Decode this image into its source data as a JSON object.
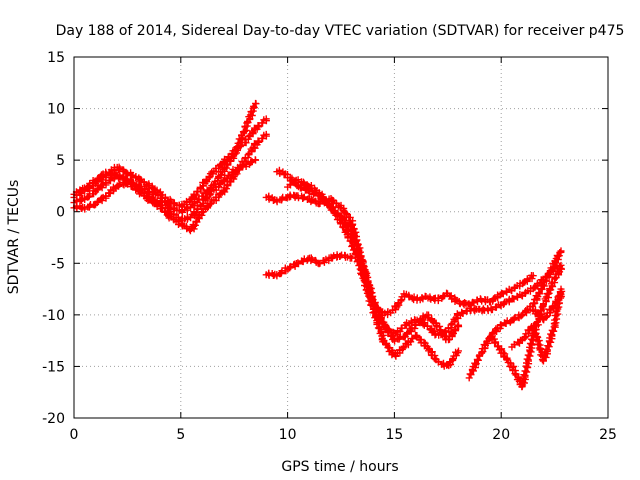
{
  "chart_data": {
    "type": "scatter",
    "title": "Day 188 of 2014, Sidereal Day-to-day VTEC variation (SDTVAR) for receiver p475",
    "xlabel": "GPS time / hours",
    "ylabel": "SDTVAR / TECUs",
    "xlim": [
      0,
      25
    ],
    "ylim": [
      -20,
      15
    ],
    "xticks": [
      0,
      5,
      10,
      15,
      20,
      25
    ],
    "yticks": [
      -20,
      -15,
      -10,
      -5,
      0,
      5,
      10,
      15
    ],
    "grid": true,
    "marker": "+",
    "series": [
      {
        "name": "trace-1",
        "color": "#ff0000",
        "points": [
          [
            0,
            1.5
          ],
          [
            0.5,
            2
          ],
          [
            1,
            2.8
          ],
          [
            1.5,
            3.5
          ],
          [
            2,
            4.3
          ],
          [
            2.5,
            3.8
          ],
          [
            3,
            3.2
          ],
          [
            3.5,
            2.6
          ],
          [
            4,
            1.8
          ],
          [
            4.5,
            1
          ],
          [
            5,
            0.5
          ],
          [
            5.5,
            1.2
          ],
          [
            6,
            2.5
          ],
          [
            6.5,
            3.8
          ],
          [
            7,
            4.8
          ],
          [
            7.5,
            5.8
          ],
          [
            8,
            6.8
          ],
          [
            8.5,
            8
          ],
          [
            9,
            9
          ]
        ]
      },
      {
        "name": "trace-2",
        "color": "#ff0000",
        "points": [
          [
            0,
            1
          ],
          [
            0.5,
            1.2
          ],
          [
            1,
            2
          ],
          [
            1.5,
            2.8
          ],
          [
            2,
            3.5
          ],
          [
            2.5,
            3.2
          ],
          [
            3,
            2.2
          ],
          [
            3.5,
            1.5
          ],
          [
            4,
            0.8
          ],
          [
            4.5,
            0
          ],
          [
            5,
            -0.8
          ],
          [
            5.5,
            -0.5
          ],
          [
            6,
            0.8
          ],
          [
            6.5,
            2
          ],
          [
            7,
            3
          ],
          [
            7.5,
            4
          ],
          [
            8,
            4.5
          ],
          [
            8.5,
            5
          ]
        ]
      },
      {
        "name": "trace-3",
        "color": "#ff0000",
        "points": [
          [
            0,
            0.5
          ],
          [
            0.5,
            0.3
          ],
          [
            1,
            0.8
          ],
          [
            1.5,
            1.5
          ],
          [
            2,
            2.5
          ],
          [
            2.5,
            2.8
          ],
          [
            3,
            2
          ],
          [
            3.5,
            1.2
          ],
          [
            4,
            0.5
          ],
          [
            4.5,
            -0.5
          ],
          [
            5,
            -1.2
          ],
          [
            5.5,
            -1.8
          ],
          [
            6,
            0
          ],
          [
            6.5,
            1
          ],
          [
            7,
            2
          ],
          [
            7.5,
            3.5
          ],
          [
            8,
            5
          ],
          [
            8.5,
            6.5
          ],
          [
            9,
            7.5
          ]
        ]
      },
      {
        "name": "trace-4",
        "color": "#ff0000",
        "points": [
          [
            0,
            1.8
          ],
          [
            0.5,
            2.2
          ],
          [
            1,
            3
          ],
          [
            1.5,
            3.8
          ],
          [
            2,
            3.5
          ],
          [
            2.5,
            3
          ],
          [
            3,
            2.5
          ],
          [
            3.5,
            2
          ],
          [
            4,
            1.5
          ],
          [
            4.5,
            0.5
          ],
          [
            5,
            0
          ],
          [
            5.5,
            0.5
          ],
          [
            6,
            1.5
          ],
          [
            6.5,
            2.5
          ],
          [
            7,
            4
          ],
          [
            7.5,
            5.5
          ],
          [
            8,
            8
          ],
          [
            8.5,
            10.5
          ]
        ]
      },
      {
        "name": "trace-5",
        "color": "#ff0000",
        "points": [
          [
            9,
            1.5
          ],
          [
            9.5,
            1
          ],
          [
            10,
            1.5
          ],
          [
            10.5,
            1.5
          ],
          [
            11,
            1.2
          ],
          [
            11.5,
            0.8
          ],
          [
            12,
            1.2
          ],
          [
            12.5,
            0.5
          ],
          [
            13,
            -1
          ],
          [
            13.5,
            -5
          ],
          [
            14,
            -9
          ],
          [
            14.5,
            -10
          ],
          [
            15,
            -9.5
          ],
          [
            15.5,
            -8
          ],
          [
            16,
            -8.5
          ],
          [
            16.5,
            -8.3
          ],
          [
            17,
            -8.5
          ],
          [
            17.5,
            -8
          ],
          [
            18,
            -8.8
          ],
          [
            18.5,
            -9
          ],
          [
            19,
            -8.5
          ],
          [
            19.5,
            -8.7
          ],
          [
            20,
            -8
          ],
          [
            20.5,
            -7.5
          ],
          [
            21,
            -7
          ],
          [
            21.5,
            -6.2
          ]
        ]
      },
      {
        "name": "trace-6",
        "color": "#ff0000",
        "points": [
          [
            9.5,
            4
          ],
          [
            10,
            3.5
          ],
          [
            10.5,
            2.5
          ],
          [
            11,
            2
          ],
          [
            11.5,
            1.5
          ],
          [
            12,
            0.5
          ],
          [
            12.5,
            -0.5
          ],
          [
            13,
            -2
          ],
          [
            13.5,
            -5
          ],
          [
            14,
            -8.5
          ],
          [
            14.5,
            -11
          ],
          [
            15,
            -12
          ],
          [
            15.5,
            -11
          ],
          [
            16,
            -10.5
          ],
          [
            16.5,
            -11
          ],
          [
            17,
            -12
          ],
          [
            17.5,
            -11.5
          ],
          [
            18,
            -10
          ],
          [
            18.5,
            -9.5
          ],
          [
            19,
            -9.5
          ],
          [
            19.5,
            -9.5
          ],
          [
            20,
            -9
          ],
          [
            20.5,
            -8.5
          ],
          [
            21,
            -8
          ],
          [
            21.5,
            -7.5
          ],
          [
            22,
            -6.5
          ],
          [
            22.5,
            -5.5
          ],
          [
            22.8,
            -5.2
          ]
        ]
      },
      {
        "name": "trace-7",
        "color": "#ff0000",
        "points": [
          [
            10,
            2.5
          ],
          [
            10.5,
            3
          ],
          [
            11,
            2.5
          ],
          [
            11.5,
            1.8
          ],
          [
            12,
            0.5
          ],
          [
            12.5,
            -1
          ],
          [
            13,
            -3
          ],
          [
            13.5,
            -6
          ],
          [
            14,
            -9.5
          ],
          [
            14.5,
            -12.5
          ],
          [
            15,
            -14
          ],
          [
            15.5,
            -13
          ],
          [
            16,
            -12
          ],
          [
            16.5,
            -13
          ],
          [
            17,
            -14.5
          ],
          [
            17.5,
            -15
          ],
          [
            18,
            -13.5
          ]
        ]
      },
      {
        "name": "trace-8",
        "color": "#ff0000",
        "points": [
          [
            9,
            -6
          ],
          [
            9.5,
            -6.2
          ],
          [
            10,
            -5.5
          ],
          [
            10.5,
            -5
          ],
          [
            11,
            -4.5
          ],
          [
            11.5,
            -5
          ],
          [
            12,
            -4.5
          ],
          [
            12.5,
            -4.2
          ],
          [
            13,
            -4.5
          ]
        ]
      },
      {
        "name": "trace-9",
        "color": "#ff0000",
        "points": [
          [
            14.5,
            -11
          ],
          [
            15,
            -12.5
          ],
          [
            15.5,
            -12
          ],
          [
            16,
            -11
          ],
          [
            16.5,
            -10
          ],
          [
            17,
            -11
          ],
          [
            17.5,
            -12.5
          ],
          [
            18,
            -11
          ]
        ]
      },
      {
        "name": "trace-10",
        "color": "#ff0000",
        "points": [
          [
            18.5,
            -16
          ],
          [
            19,
            -14
          ],
          [
            19.5,
            -12
          ],
          [
            20,
            -11
          ],
          [
            20.5,
            -10.5
          ],
          [
            21,
            -10
          ],
          [
            21.5,
            -9
          ],
          [
            22,
            -7
          ],
          [
            22.5,
            -5
          ],
          [
            22.8,
            -3.8
          ]
        ]
      },
      {
        "name": "trace-11",
        "color": "#ff0000",
        "points": [
          [
            19.5,
            -12
          ],
          [
            20,
            -13.5
          ],
          [
            20.5,
            -15
          ],
          [
            21,
            -17
          ],
          [
            21.5,
            -12
          ],
          [
            22,
            -9
          ],
          [
            22.5,
            -6.5
          ],
          [
            22.8,
            -5.5
          ]
        ]
      },
      {
        "name": "trace-12",
        "color": "#ff0000",
        "points": [
          [
            20.5,
            -13
          ],
          [
            21,
            -12.5
          ],
          [
            21.5,
            -11
          ],
          [
            22,
            -14.5
          ],
          [
            22.5,
            -11
          ],
          [
            22.8,
            -7.5
          ]
        ]
      },
      {
        "name": "trace-13",
        "color": "#ff0000",
        "points": [
          [
            21.5,
            -9.5
          ],
          [
            22,
            -10.5
          ],
          [
            22.5,
            -9
          ],
          [
            22.8,
            -8
          ]
        ]
      }
    ]
  }
}
